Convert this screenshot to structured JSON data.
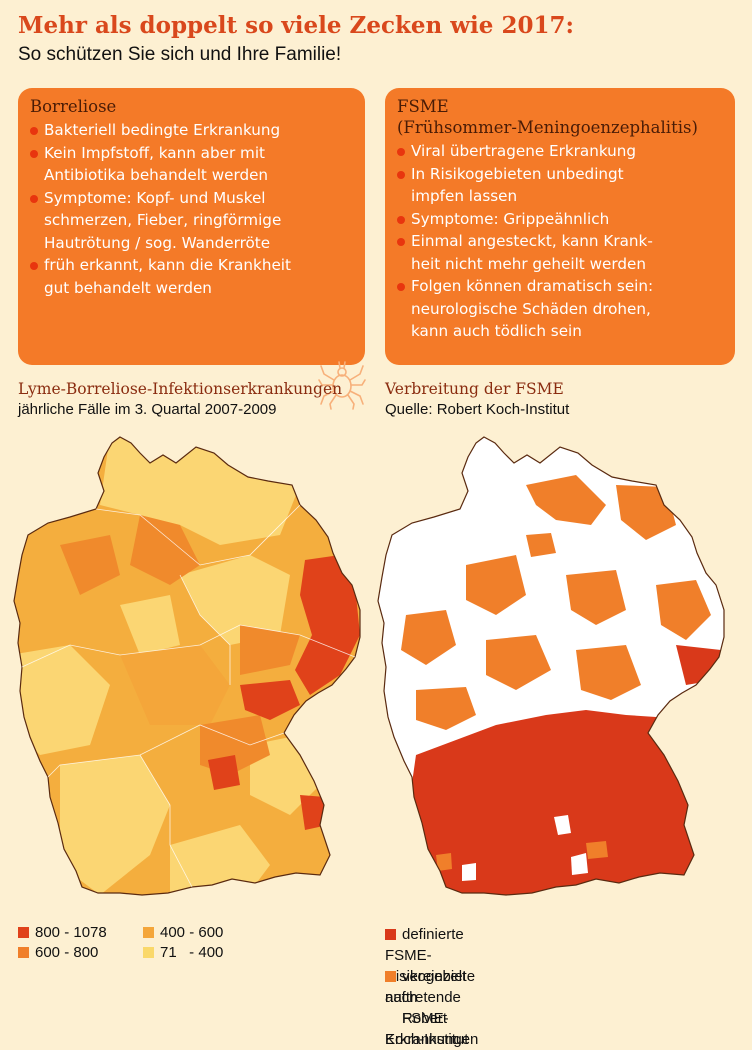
{
  "header": {
    "title": "Mehr als doppelt so viele Zecken wie 2017:",
    "subtitle": "So schützen Sie sich und Ihre Familie!"
  },
  "borreliose": {
    "heading": "Borreliose",
    "lines": [
      "Bakteriell bedingte Erkrankung",
      "Kein Impfstoff, kann aber mit",
      "Antibiotika behandelt werden",
      "Symptome: Kopf- und Muskel",
      "schmerzen, Fieber, ringförmige",
      "Hautrötung / sog. Wanderröte",
      "früh erkannt, kann die Krankheit",
      "gut behandelt werden"
    ]
  },
  "fsme": {
    "heading": "FSME",
    "subheading": "(Frühsommer-Meningoenzephalitis)",
    "lines": [
      "Viral übertragene Erkrankung",
      "In Risikogebieten unbedingt",
      "impfen lassen",
      "Symptome: Grippeähnlich",
      "Einmal angesteckt, kann Krank-",
      "heit nicht mehr geheilt werden",
      "Folgen können dramatisch sein:",
      "neurologische Schäden drohen,",
      "kann auch tödlich sein"
    ]
  },
  "left_map": {
    "title": "Lyme-Borreliose-Infektionserkrankungen",
    "subtitle": "jährliche Fälle im 3. Quartal 2007-2009",
    "legend": [
      {
        "label": "800 - 1078",
        "color": "#e0421a"
      },
      {
        "label": "400 - 600",
        "color": "#f4a63a"
      },
      {
        "label": "600 - 800",
        "color": "#f07f2a"
      },
      {
        "label": "71   - 400",
        "color": "#fad86a"
      }
    ]
  },
  "right_map": {
    "title": "Verbreitung der FSME",
    "subtitle": "Quelle: Robert Koch-Institut",
    "legend": [
      {
        "label_line1": "definierte FSME-Risikogebiete nach",
        "label_line2": "Robert Koch-Institut",
        "color": "#d9391a"
      },
      {
        "label_line1": "vereinzelt auftretende",
        "label_line2": "FSME-Erkrankungen",
        "color": "#f07f2a"
      }
    ]
  }
}
